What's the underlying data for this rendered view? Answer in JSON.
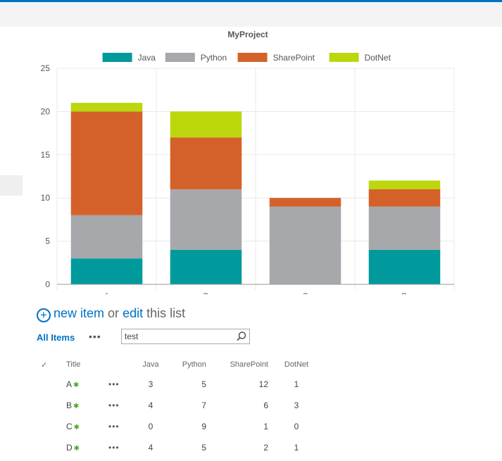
{
  "list": {
    "new_item_link": "new item",
    "or_text": "or",
    "edit_link": "edit",
    "this_list_text": "this list",
    "view_name": "All Items",
    "more_label": "•••",
    "search_value": "test",
    "headers": {
      "check": "✓",
      "title": "Title",
      "java": "Java",
      "python": "Python",
      "sharepoint": "SharePoint",
      "dotnet": "DotNet"
    },
    "new_marker": "✱",
    "row_menu": "•••",
    "rows": [
      {
        "title": "A",
        "java": "3",
        "python": "5",
        "sharepoint": "12",
        "dotnet": "1"
      },
      {
        "title": "B",
        "java": "4",
        "python": "7",
        "sharepoint": "6",
        "dotnet": "3"
      },
      {
        "title": "C",
        "java": "0",
        "python": "9",
        "sharepoint": "1",
        "dotnet": "0"
      },
      {
        "title": "D",
        "java": "4",
        "python": "5",
        "sharepoint": "2",
        "dotnet": "1"
      }
    ]
  },
  "chart_data": {
    "type": "bar",
    "stacked": true,
    "title": "MyProject",
    "categories": [
      "A",
      "B",
      "C",
      "D"
    ],
    "series": [
      {
        "name": "Java",
        "color": "#009a9c",
        "values": [
          3,
          4,
          0,
          4
        ]
      },
      {
        "name": "Python",
        "color": "#a7a8ab",
        "values": [
          5,
          7,
          9,
          5
        ]
      },
      {
        "name": "SharePoint",
        "color": "#d5612a",
        "values": [
          12,
          6,
          1,
          2
        ]
      },
      {
        "name": "DotNet",
        "color": "#bcd70b",
        "values": [
          1,
          3,
          0,
          1
        ]
      }
    ],
    "ylim": [
      0,
      25
    ],
    "yticks": [
      0,
      5,
      10,
      15,
      20,
      25
    ],
    "grid": true,
    "legend_position": "top"
  }
}
